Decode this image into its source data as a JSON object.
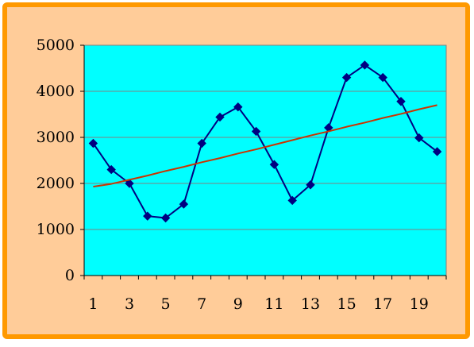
{
  "chart_data": {
    "type": "line",
    "x": [
      1,
      2,
      3,
      4,
      5,
      6,
      7,
      8,
      9,
      10,
      11,
      12,
      13,
      14,
      15,
      16,
      17,
      18,
      19,
      20
    ],
    "x_tick_labels": [
      "1",
      "3",
      "5",
      "7",
      "9",
      "11",
      "13",
      "15",
      "17",
      "19"
    ],
    "x_tick_values": [
      1,
      3,
      5,
      7,
      9,
      11,
      13,
      15,
      17,
      19
    ],
    "y_tick_labels": [
      "0",
      "1000",
      "2000",
      "3000",
      "4000",
      "5000"
    ],
    "y_tick_values": [
      0,
      1000,
      2000,
      3000,
      4000,
      5000
    ],
    "ylim": [
      0,
      5000
    ],
    "grid": "horizontal",
    "legend": "none",
    "series": [
      {
        "kind": "data",
        "marker": "diamond",
        "color": "#000080",
        "values": [
          2870,
          2300,
          2000,
          1290,
          1250,
          1550,
          2870,
          3440,
          3660,
          3130,
          2410,
          1630,
          1970,
          3210,
          4300,
          4570,
          4300,
          3780,
          2990,
          2690
        ]
      },
      {
        "kind": "trend",
        "marker": "none",
        "color": "#cc3300",
        "values": [
          1930,
          1990,
          2080,
          2170,
          2270,
          2360,
          2460,
          2550,
          2650,
          2740,
          2840,
          2940,
          3040,
          3130,
          3230,
          3320,
          3420,
          3510,
          3610,
          3700
        ]
      }
    ],
    "colors": {
      "frame_border": "#ff9900",
      "frame_fill": "#ffcc99",
      "plot_fill": "#00ffff",
      "gridline": "#808080"
    }
  }
}
